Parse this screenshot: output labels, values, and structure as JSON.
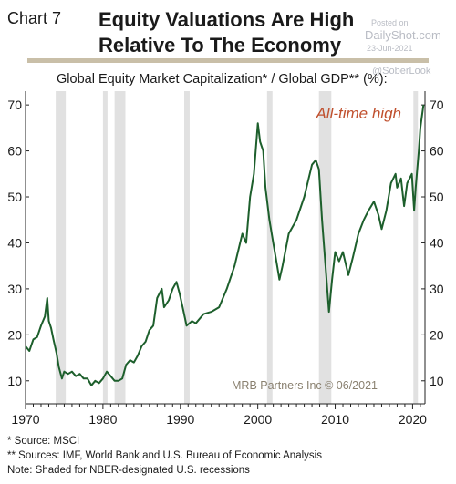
{
  "header": {
    "chart_label": "Chart 7",
    "title_line1": "Equity Valuations Are High",
    "title_line2": "Relative To The Economy"
  },
  "watermark": {
    "posted_label": "Posted on",
    "site": "DailyShot.com",
    "date": "23-Jun-2021",
    "handle": "@SoberLook"
  },
  "colors": {
    "line": "#1d5f2c",
    "recession": "#e1e1e1",
    "annotation": "#c0502e",
    "rule": "#c9bfa8",
    "source_text": "#8a8170"
  },
  "chart_data": {
    "type": "line",
    "title": "Global Equity Market Capitalization* / Global GDP** (%):",
    "annotation": "All-time high",
    "source": "MRB Partners Inc © 06/2021",
    "xlim": [
      1970,
      2021.6
    ],
    "ylim": [
      5,
      73
    ],
    "x_ticks": [
      1970,
      1980,
      1990,
      2000,
      2010,
      2020
    ],
    "y_ticks": [
      10,
      20,
      30,
      40,
      50,
      60,
      70
    ],
    "recessions": [
      [
        1973.9,
        1975.2
      ],
      [
        1980.0,
        1980.5
      ],
      [
        1981.5,
        1982.9
      ],
      [
        1990.5,
        1991.2
      ],
      [
        2001.2,
        2001.9
      ],
      [
        2007.9,
        2009.5
      ],
      [
        2020.1,
        2020.4
      ]
    ],
    "series": [
      {
        "x": [
          1970.0,
          1970.5,
          1971.0,
          1971.5,
          1972.0,
          1972.5,
          1972.8,
          1973.0,
          1973.3,
          1973.6,
          1974.0,
          1974.3,
          1974.7,
          1975.0,
          1975.5,
          1976.0,
          1976.5,
          1977.0,
          1977.5,
          1978.0,
          1978.5,
          1979.0,
          1979.5,
          1980.0,
          1980.5,
          1981.0,
          1981.5,
          1982.0,
          1982.5,
          1983.0,
          1983.5,
          1984.0,
          1984.5,
          1985.0,
          1985.5,
          1986.0,
          1986.5,
          1987.0,
          1987.6,
          1987.9,
          1988.5,
          1989.0,
          1989.5,
          1989.9,
          1990.3,
          1990.8,
          1991.5,
          1992.0,
          1993.0,
          1994.0,
          1995.0,
          1996.0,
          1997.0,
          1998.0,
          1998.5,
          1999.0,
          1999.5,
          2000.0,
          2000.3,
          2000.7,
          2001.0,
          2001.5,
          2002.0,
          2002.5,
          2002.8,
          2003.2,
          2004.0,
          2005.0,
          2006.0,
          2007.0,
          2007.5,
          2007.9,
          2008.3,
          2008.8,
          2009.2,
          2009.6,
          2010.0,
          2010.5,
          2011.0,
          2011.7,
          2012.3,
          2013.0,
          2013.7,
          2014.3,
          2015.0,
          2015.6,
          2016.0,
          2016.6,
          2017.2,
          2017.8,
          2018.0,
          2018.5,
          2018.9,
          2019.3,
          2019.9,
          2020.2,
          2020.4,
          2020.8,
          2021.0,
          2021.4
        ],
        "y": [
          17.5,
          16.5,
          19.0,
          19.5,
          22.0,
          24.0,
          28.0,
          23.0,
          21.5,
          19.0,
          16.0,
          13.0,
          10.5,
          12.0,
          11.5,
          12.0,
          11.0,
          11.5,
          10.5,
          10.5,
          9.0,
          10.0,
          9.5,
          10.5,
          12.0,
          11.0,
          10.0,
          10.0,
          10.5,
          13.5,
          14.5,
          14.0,
          15.5,
          17.5,
          18.5,
          21.0,
          22.0,
          28.0,
          30.0,
          26.0,
          27.5,
          30.0,
          31.5,
          29.0,
          26.0,
          22.0,
          23.0,
          22.5,
          24.5,
          25.0,
          26.0,
          30.0,
          35.0,
          42.0,
          40.0,
          50.0,
          55.0,
          66.0,
          62.0,
          60.0,
          52.0,
          45.0,
          40.0,
          35.0,
          32.0,
          35.0,
          42.0,
          45.0,
          50.0,
          57.0,
          58.0,
          56.0,
          45.0,
          34.0,
          25.0,
          32.0,
          38.0,
          36.0,
          38.0,
          33.0,
          37.0,
          42.0,
          45.0,
          47.0,
          49.0,
          46.0,
          43.0,
          47.0,
          53.0,
          55.0,
          52.0,
          54.0,
          48.0,
          53.0,
          55.0,
          47.0,
          52.0,
          60.0,
          65.0,
          70.0
        ]
      }
    ]
  },
  "footnotes": {
    "f1": "*  Source: MSCI",
    "f2": "** Sources: IMF, World Bank and U.S. Bureau of Economic Analysis",
    "f3": "Note: Shaded for NBER-designated U.S. recessions"
  }
}
